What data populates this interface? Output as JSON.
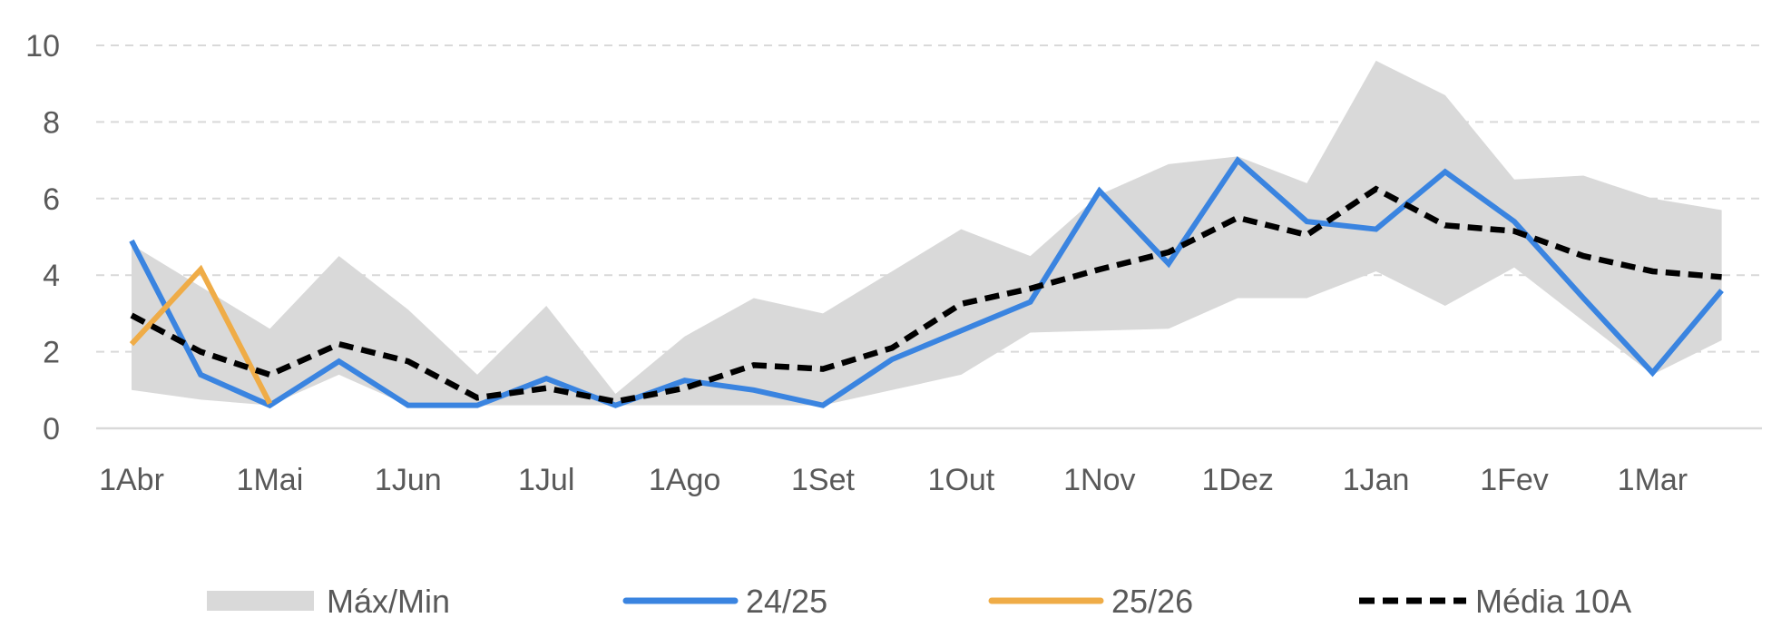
{
  "chart_data": {
    "type": "line",
    "x_labels": [
      "1Abr",
      "1Mai",
      "1Jun",
      "1Jul",
      "1Ago",
      "1Set",
      "1Out",
      "1Nov",
      "1Dez",
      "1Jan",
      "1Fev",
      "1Mar"
    ],
    "ylim": [
      0,
      10
    ],
    "yticks": [
      0,
      2,
      4,
      6,
      8,
      10
    ],
    "grid": true,
    "legend_position": "bottom",
    "series": [
      {
        "name": "Máx/Min",
        "kind": "band",
        "color": "#d9d9d9",
        "upper": [
          4.8,
          3.7,
          2.6,
          4.5,
          3.1,
          1.4,
          3.2,
          0.9,
          2.4,
          3.4,
          3.0,
          4.1,
          5.2,
          4.5,
          6.1,
          6.9,
          7.1,
          6.4,
          9.6,
          8.7,
          6.5,
          6.6,
          6.0,
          5.7
        ],
        "lower": [
          1.0,
          0.75,
          0.6,
          1.4,
          0.6,
          0.6,
          0.6,
          0.6,
          0.6,
          0.6,
          0.6,
          1.0,
          1.4,
          2.5,
          2.55,
          2.6,
          3.4,
          3.4,
          4.1,
          3.2,
          4.2,
          2.8,
          1.4,
          2.3
        ]
      },
      {
        "name": "24/25",
        "kind": "line",
        "color": "#3a84e0",
        "values": [
          4.9,
          1.4,
          0.6,
          1.75,
          0.6,
          0.6,
          1.3,
          0.6,
          1.25,
          1.0,
          0.6,
          1.8,
          2.55,
          3.3,
          6.2,
          4.3,
          7.0,
          5.4,
          5.2,
          6.7,
          5.4,
          3.4,
          1.45,
          3.6
        ]
      },
      {
        "name": "25/26",
        "kind": "line",
        "color": "#efac47",
        "values": [
          2.2,
          4.15,
          0.65
        ]
      },
      {
        "name": "Média 10A",
        "kind": "dashed",
        "color": "#000000",
        "values": [
          2.95,
          2.0,
          1.4,
          2.2,
          1.75,
          0.8,
          1.05,
          0.7,
          1.05,
          1.65,
          1.55,
          2.1,
          3.25,
          3.65,
          4.15,
          4.6,
          5.5,
          5.05,
          6.25,
          5.3,
          5.15,
          4.5,
          4.1,
          3.95
        ]
      }
    ]
  }
}
